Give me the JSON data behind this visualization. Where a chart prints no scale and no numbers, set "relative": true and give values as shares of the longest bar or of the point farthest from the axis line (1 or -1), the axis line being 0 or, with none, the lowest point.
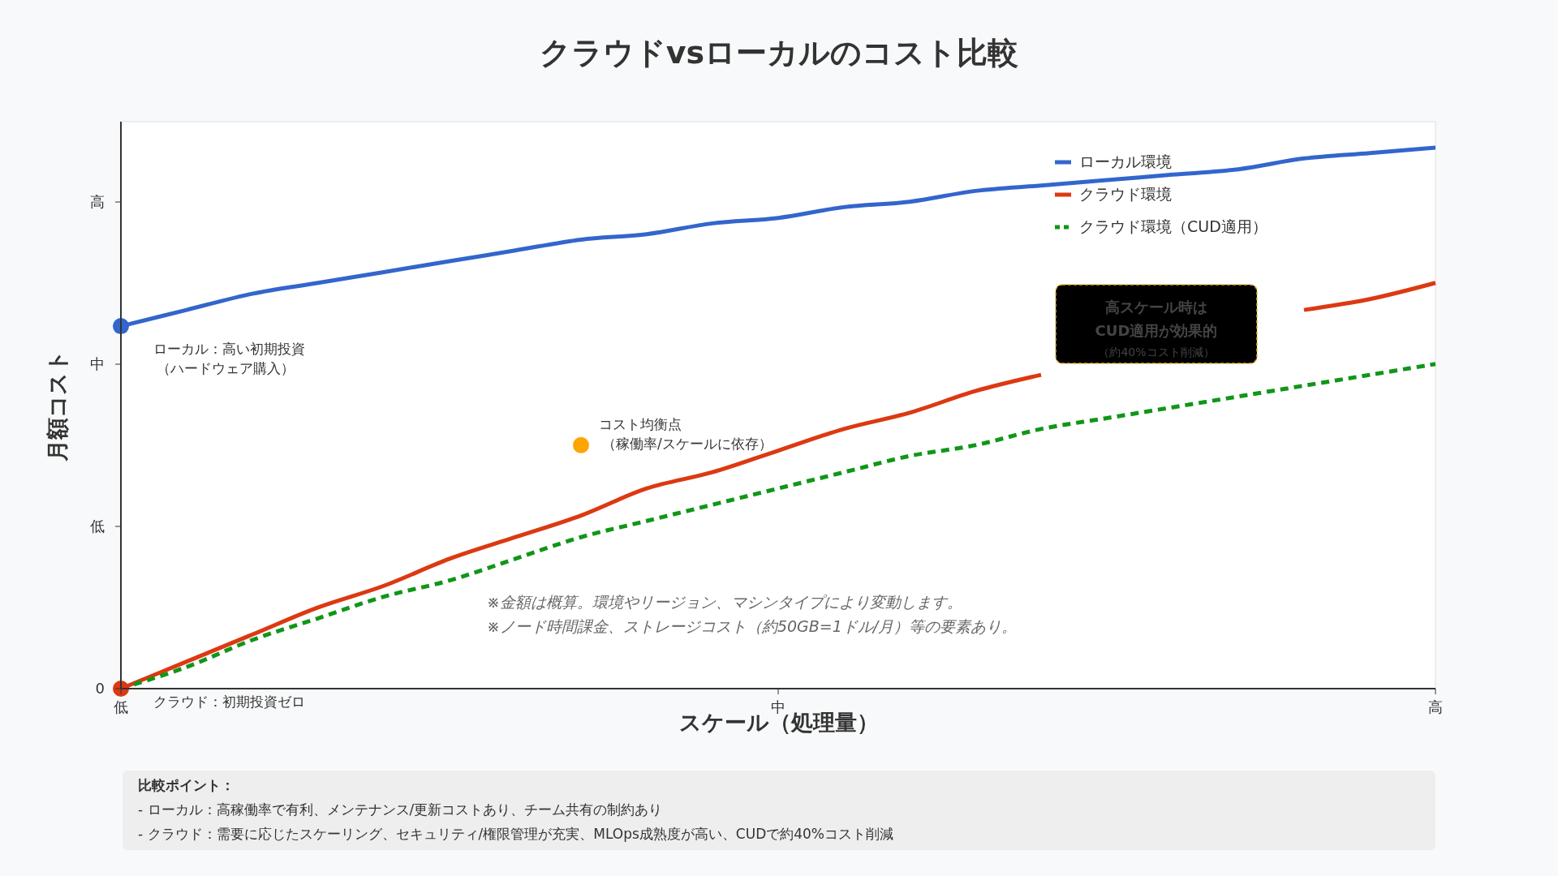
{
  "chart_data": {
    "type": "line",
    "title": "クラウドvsローカルのコスト比較",
    "xlabel": "スケール（処理量）",
    "ylabel": "月額コスト",
    "relative": true,
    "categories": [
      "低",
      null,
      null,
      null,
      null,
      null,
      null,
      null,
      null,
      null,
      "中",
      null,
      null,
      null,
      null,
      null,
      null,
      null,
      null,
      null,
      "高"
    ],
    "series": [
      {
        "name": "ローカル環境",
        "color": "#3366cc",
        "values": [
          0.67,
          0.7,
          0.73,
          0.75,
          0.77,
          0.79,
          0.81,
          0.83,
          0.84,
          0.86,
          0.87,
          0.89,
          0.9,
          0.92,
          0.93,
          0.94,
          0.95,
          0.96,
          0.98,
          0.99,
          1
        ]
      },
      {
        "name": "クラウド環境",
        "color": "#dc3912",
        "values": [
          0,
          0.05,
          0.1,
          0.15,
          0.19,
          0.24,
          0.28,
          0.32,
          0.37,
          0.4,
          0.44,
          0.48,
          0.51,
          0.55,
          0.58,
          null,
          null,
          null,
          0.7,
          0.72,
          0.75
        ]
      },
      {
        "name": "クラウド環境（CUD適用）",
        "color": "#109618",
        "line_style": "dashed",
        "values": [
          0,
          0.04,
          0.09,
          0.13,
          0.17,
          0.2,
          0.24,
          0.28,
          0.31,
          0.34,
          0.37,
          0.4,
          0.43,
          0.45,
          0.48,
          0.5,
          0.52,
          0.54,
          0.56,
          0.58,
          0.6
        ]
      },
      {
        "type": "scatter",
        "marker": "circle",
        "color": "#3366cc",
        "values": [
          0.67,
          null,
          null,
          null,
          null,
          null,
          null,
          null,
          null,
          null,
          null,
          null,
          null,
          null,
          null,
          null,
          null,
          null,
          null,
          null,
          null
        ]
      },
      {
        "type": "scatter",
        "marker": "circle",
        "color": "#dc3912",
        "values": [
          0,
          null,
          null,
          null,
          null,
          null,
          null,
          null,
          null,
          null,
          null,
          null,
          null,
          null,
          null,
          null,
          null,
          null,
          null,
          null,
          null
        ]
      },
      {
        "type": "scatter",
        "marker": "circle",
        "color": "#ffa500",
        "values": [
          null,
          null,
          null,
          null,
          null,
          null,
          null,
          0.45,
          null,
          null,
          null,
          null,
          null,
          null,
          null,
          null,
          null,
          null,
          null,
          null,
          null
        ]
      }
    ],
    "legend": "top right",
    "annotations": [
      "0",
      "低",
      "中",
      "高",
      "ローカル：高い初期投資（ハードウェア購入）",
      "クラウド：初期投資ゼロ",
      "コスト均衡点（稼働率/スケールに依存）",
      "高スケール時は",
      "CUD適用が効果的",
      "（約40%コスト削減）",
      "※金額は概算。環境やリージョン、マシンタイプにより変動します。",
      "※ノード時間課金、ストレージコスト（約50GB=1ドル/月）等の要素あり。",
      "比較ポイント：",
      "- ローカル：高稼働率で有利、メンテナンス/更新コストあり、チーム共有の制約あり",
      "- クラウド：需要に応じたスケーリング、セキュリティ/権限管理が充実、MLOps成熟度が高い、CUDで約40%コスト削減"
    ]
  }
}
